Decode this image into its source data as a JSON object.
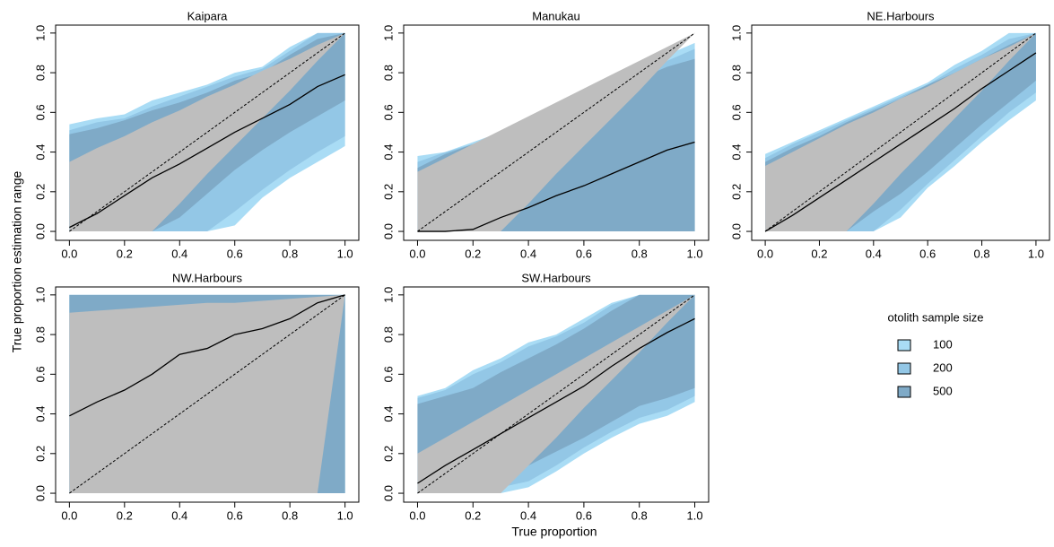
{
  "chart_data": [
    {
      "type": "band",
      "title": "Kaipara",
      "x": [
        0,
        0.1,
        0.2,
        0.3,
        0.4,
        0.5,
        0.6,
        0.7,
        0.8,
        0.9,
        1
      ],
      "values": [
        0.02,
        0.09,
        0.18,
        0.27,
        0.34,
        0.42,
        0.5,
        0.57,
        0.64,
        0.73,
        0.79
      ],
      "bands": [
        {
          "upper": [
            0.54,
            0.57,
            0.59,
            0.66,
            0.7,
            0.74,
            0.8,
            0.83,
            0.93,
            1,
            1
          ],
          "lower": [
            0,
            0,
            0,
            0,
            0,
            0,
            0.03,
            0.17,
            0.27,
            0.35,
            0.43
          ]
        },
        {
          "upper": [
            0.51,
            0.55,
            0.57,
            0.63,
            0.68,
            0.73,
            0.78,
            0.82,
            0.91,
            1,
            1
          ],
          "lower": [
            0,
            0,
            0,
            0,
            0,
            0,
            0.1,
            0.21,
            0.31,
            0.4,
            0.48
          ]
        },
        {
          "upper": [
            0.49,
            0.52,
            0.56,
            0.61,
            0.65,
            0.7,
            0.76,
            0.8,
            0.89,
            0.97,
            1
          ],
          "lower": [
            0,
            0,
            0,
            0,
            0.07,
            0.19,
            0.31,
            0.41,
            0.5,
            0.58,
            0.66
          ]
        },
        {
          "upper": [
            0.35,
            0.42,
            0.48,
            0.55,
            0.61,
            0.68,
            0.74,
            0.81,
            0.87,
            0.94,
            1
          ],
          "lower": [
            0,
            0,
            0,
            0,
            0.14,
            0.29,
            0.43,
            0.57,
            0.71,
            0.86,
            1
          ]
        }
      ],
      "xlim": [
        -0.05,
        1.05
      ],
      "ylim": [
        -0.045,
        1.04
      ],
      "xticks": [
        {
          "value": 0,
          "label": "0.0"
        },
        {
          "value": 0.2,
          "label": "0.2"
        },
        {
          "value": 0.4,
          "label": "0.4"
        },
        {
          "value": 0.6,
          "label": "0.6"
        },
        {
          "value": 0.8,
          "label": "0.8"
        },
        {
          "value": 1,
          "label": "1.0"
        }
      ],
      "yticks": [
        {
          "value": 0,
          "label": "0.0"
        },
        {
          "value": 0.2,
          "label": "0.2"
        },
        {
          "value": 0.4,
          "label": "0.4"
        },
        {
          "value": 0.6,
          "label": "0.6"
        },
        {
          "value": 0.8,
          "label": "0.8"
        },
        {
          "value": 1,
          "label": "1.0"
        }
      ]
    },
    {
      "type": "band",
      "title": "Manukau",
      "x": [
        0,
        0.1,
        0.2,
        0.3,
        0.4,
        0.5,
        0.6,
        0.7,
        0.8,
        0.9,
        1
      ],
      "values": [
        0,
        0,
        0.01,
        0.07,
        0.12,
        0.18,
        0.23,
        0.29,
        0.35,
        0.41,
        0.45
      ],
      "bands": [
        {
          "upper": [
            0.38,
            0.4,
            0.45,
            0.5,
            0.56,
            0.61,
            0.67,
            0.72,
            0.78,
            0.89,
            0.95
          ],
          "lower": [
            0,
            0,
            0,
            0,
            0,
            0,
            0,
            0,
            0,
            0,
            0
          ]
        },
        {
          "upper": [
            0.35,
            0.4,
            0.44,
            0.5,
            0.55,
            0.61,
            0.67,
            0.72,
            0.78,
            0.86,
            0.92
          ],
          "lower": [
            0,
            0,
            0,
            0,
            0,
            0,
            0,
            0,
            0,
            0,
            0
          ]
        },
        {
          "upper": [
            0.32,
            0.39,
            0.44,
            0.5,
            0.55,
            0.61,
            0.66,
            0.72,
            0.77,
            0.83,
            0.87
          ],
          "lower": [
            0,
            0,
            0,
            0,
            0,
            0,
            0,
            0,
            0,
            0,
            0
          ]
        },
        {
          "upper": [
            0.3,
            0.37,
            0.44,
            0.51,
            0.58,
            0.65,
            0.72,
            0.79,
            0.86,
            0.93,
            1
          ],
          "lower": [
            0,
            0,
            0,
            0,
            0.14,
            0.29,
            0.43,
            0.57,
            0.71,
            0.86,
            1
          ]
        }
      ],
      "xlim": [
        -0.05,
        1.05
      ],
      "ylim": [
        -0.045,
        1.04
      ],
      "xticks": [
        {
          "value": 0,
          "label": "0.0"
        },
        {
          "value": 0.2,
          "label": "0.2"
        },
        {
          "value": 0.4,
          "label": "0.4"
        },
        {
          "value": 0.6,
          "label": "0.6"
        },
        {
          "value": 0.8,
          "label": "0.8"
        },
        {
          "value": 1,
          "label": "1.0"
        }
      ],
      "yticks": [
        {
          "value": 0,
          "label": "0.0"
        },
        {
          "value": 0.2,
          "label": "0.2"
        },
        {
          "value": 0.4,
          "label": "0.4"
        },
        {
          "value": 0.6,
          "label": "0.6"
        },
        {
          "value": 0.8,
          "label": "0.8"
        },
        {
          "value": 1,
          "label": "1.0"
        }
      ]
    },
    {
      "type": "band",
      "title": "NE.Harbours",
      "x": [
        0,
        0.1,
        0.2,
        0.3,
        0.4,
        0.5,
        0.6,
        0.7,
        0.8,
        0.9,
        1
      ],
      "values": [
        0,
        0.08,
        0.17,
        0.26,
        0.35,
        0.44,
        0.53,
        0.62,
        0.72,
        0.81,
        0.9
      ],
      "bands": [
        {
          "upper": [
            0.39,
            0.45,
            0.51,
            0.57,
            0.63,
            0.69,
            0.75,
            0.84,
            0.91,
            1,
            1
          ],
          "lower": [
            0,
            0,
            0,
            0,
            0,
            0.07,
            0.22,
            0.33,
            0.45,
            0.56,
            0.66
          ]
        },
        {
          "upper": [
            0.37,
            0.44,
            0.5,
            0.56,
            0.62,
            0.68,
            0.74,
            0.82,
            0.89,
            0.97,
            1
          ],
          "lower": [
            0,
            0,
            0,
            0,
            0,
            0.11,
            0.24,
            0.36,
            0.48,
            0.6,
            0.7
          ]
        },
        {
          "upper": [
            0.35,
            0.42,
            0.48,
            0.55,
            0.61,
            0.67,
            0.74,
            0.8,
            0.87,
            0.94,
            1
          ],
          "lower": [
            0,
            0,
            0,
            0,
            0.1,
            0.19,
            0.3,
            0.42,
            0.54,
            0.65,
            0.76
          ]
        },
        {
          "upper": [
            0.33,
            0.4,
            0.47,
            0.54,
            0.6,
            0.67,
            0.73,
            0.8,
            0.87,
            0.93,
            1
          ],
          "lower": [
            0,
            0,
            0,
            0,
            0.14,
            0.29,
            0.43,
            0.57,
            0.71,
            0.86,
            1
          ]
        }
      ],
      "xlim": [
        -0.05,
        1.05
      ],
      "ylim": [
        -0.045,
        1.04
      ],
      "xticks": [
        {
          "value": 0,
          "label": "0.0"
        },
        {
          "value": 0.2,
          "label": "0.2"
        },
        {
          "value": 0.4,
          "label": "0.4"
        },
        {
          "value": 0.6,
          "label": "0.6"
        },
        {
          "value": 0.8,
          "label": "0.8"
        },
        {
          "value": 1,
          "label": "1.0"
        }
      ],
      "yticks": [
        {
          "value": 0,
          "label": "0.0"
        },
        {
          "value": 0.2,
          "label": "0.2"
        },
        {
          "value": 0.4,
          "label": "0.4"
        },
        {
          "value": 0.6,
          "label": "0.6"
        },
        {
          "value": 0.8,
          "label": "0.8"
        },
        {
          "value": 1,
          "label": "1.0"
        }
      ]
    },
    {
      "type": "band",
      "title": "NW.Harbours",
      "x": [
        0,
        0.1,
        0.2,
        0.3,
        0.4,
        0.5,
        0.6,
        0.7,
        0.8,
        0.9,
        1
      ],
      "values": [
        0.39,
        0.46,
        0.52,
        0.6,
        0.7,
        0.73,
        0.8,
        0.83,
        0.88,
        0.96,
        1
      ],
      "bands": [
        {
          "upper": [
            1,
            1,
            1,
            1,
            1,
            1,
            1,
            1,
            1,
            1,
            1
          ],
          "lower": [
            0,
            0,
            0,
            0,
            0,
            0,
            0,
            0,
            0,
            0,
            0
          ]
        },
        {
          "upper": [
            1,
            1,
            1,
            1,
            1,
            1,
            1,
            1,
            1,
            1,
            1
          ],
          "lower": [
            0,
            0,
            0,
            0,
            0,
            0,
            0,
            0,
            0,
            0,
            0
          ]
        },
        {
          "upper": [
            1,
            1,
            1,
            1,
            1,
            1,
            1,
            1,
            1,
            1,
            1
          ],
          "lower": [
            0,
            0,
            0,
            0,
            0,
            0,
            0,
            0,
            0,
            0,
            0
          ]
        },
        {
          "upper": [
            0.91,
            0.92,
            0.93,
            0.94,
            0.95,
            0.96,
            0.96,
            0.97,
            0.98,
            0.99,
            1
          ],
          "lower": [
            0,
            0,
            0,
            0,
            0,
            0,
            0,
            0,
            0,
            0,
            1
          ]
        }
      ],
      "xlim": [
        -0.05,
        1.05
      ],
      "ylim": [
        -0.045,
        1.04
      ],
      "xticks": [
        {
          "value": 0,
          "label": "0.0"
        },
        {
          "value": 0.2,
          "label": "0.2"
        },
        {
          "value": 0.4,
          "label": "0.4"
        },
        {
          "value": 0.6,
          "label": "0.6"
        },
        {
          "value": 0.8,
          "label": "0.8"
        },
        {
          "value": 1,
          "label": "1.0"
        }
      ],
      "yticks": [
        {
          "value": 0,
          "label": "0.0"
        },
        {
          "value": 0.2,
          "label": "0.2"
        },
        {
          "value": 0.4,
          "label": "0.4"
        },
        {
          "value": 0.6,
          "label": "0.6"
        },
        {
          "value": 0.8,
          "label": "0.8"
        },
        {
          "value": 1,
          "label": "1.0"
        }
      ]
    },
    {
      "type": "band",
      "title": "SW.Harbours",
      "x": [
        0,
        0.1,
        0.2,
        0.3,
        0.4,
        0.5,
        0.6,
        0.7,
        0.8,
        0.9,
        1
      ],
      "values": [
        0.05,
        0.14,
        0.22,
        0.3,
        0.38,
        0.46,
        0.54,
        0.64,
        0.73,
        0.81,
        0.88
      ],
      "bands": [
        {
          "upper": [
            0.49,
            0.53,
            0.62,
            0.68,
            0.76,
            0.8,
            0.88,
            0.96,
            1,
            1,
            1
          ],
          "lower": [
            0,
            0,
            0,
            0,
            0.03,
            0.11,
            0.2,
            0.28,
            0.35,
            0.39,
            0.46
          ]
        },
        {
          "upper": [
            0.48,
            0.52,
            0.6,
            0.66,
            0.74,
            0.79,
            0.86,
            0.95,
            1,
            1,
            1
          ],
          "lower": [
            0,
            0,
            0,
            0.03,
            0.06,
            0.14,
            0.23,
            0.31,
            0.38,
            0.42,
            0.49
          ]
        },
        {
          "upper": [
            0.45,
            0.49,
            0.53,
            0.61,
            0.68,
            0.75,
            0.83,
            0.92,
            1,
            1,
            1
          ],
          "lower": [
            0,
            0,
            0,
            0.07,
            0.14,
            0.21,
            0.28,
            0.36,
            0.44,
            0.48,
            0.53
          ]
        },
        {
          "upper": [
            0.2,
            0.28,
            0.36,
            0.44,
            0.52,
            0.6,
            0.68,
            0.76,
            0.84,
            0.92,
            1
          ],
          "lower": [
            0,
            0,
            0,
            0,
            0.14,
            0.28,
            0.43,
            0.57,
            0.71,
            0.86,
            1
          ]
        }
      ],
      "xlim": [
        -0.05,
        1.05
      ],
      "ylim": [
        -0.045,
        1.04
      ],
      "xticks": [
        {
          "value": 0,
          "label": "0.0"
        },
        {
          "value": 0.2,
          "label": "0.2"
        },
        {
          "value": 0.4,
          "label": "0.4"
        },
        {
          "value": 0.6,
          "label": "0.6"
        },
        {
          "value": 0.8,
          "label": "0.8"
        },
        {
          "value": 1,
          "label": "1.0"
        }
      ],
      "yticks": [
        {
          "value": 0,
          "label": "0.0"
        },
        {
          "value": 0.2,
          "label": "0.2"
        },
        {
          "value": 0.4,
          "label": "0.4"
        },
        {
          "value": 0.6,
          "label": "0.6"
        },
        {
          "value": 0.8,
          "label": "0.8"
        },
        {
          "value": 1,
          "label": "1.0"
        }
      ]
    }
  ],
  "x_label": "True proportion",
  "y_label": "True proportion estimation range",
  "legend": {
    "title": "otolith sample size",
    "items": [
      "100",
      "200",
      "500"
    ],
    "colors": [
      "#a9dcf5",
      "#93c7e6",
      "#7faac7"
    ]
  },
  "range_color": "#bebebe",
  "line_color": "#000000"
}
